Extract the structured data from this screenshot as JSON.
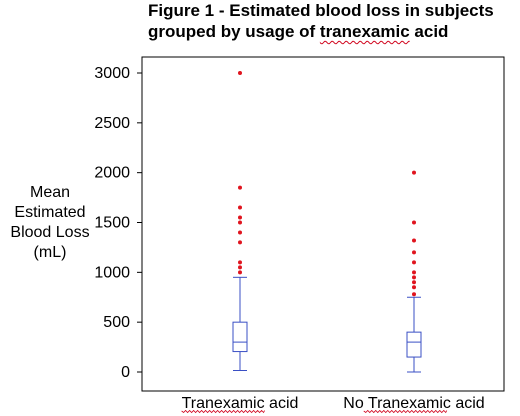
{
  "chart_data": {
    "type": "box",
    "title_line1": "Figure 1 - Estimated blood loss in subjects",
    "title_line2_prefix": "grouped by usage of ",
    "title_line2_word": "tranexamic",
    "title_line2_suffix": " acid",
    "ylabel_lines": [
      "Mean",
      "Estimated",
      "Blood Loss",
      "(mL)"
    ],
    "xlabel": "",
    "ylim": [
      0,
      3000
    ],
    "yticks": [
      0,
      500,
      1000,
      1500,
      2000,
      2500,
      3000
    ],
    "grid": false,
    "categories": [
      "Tranexamic acid",
      "No Tranexamic acid"
    ],
    "category_squiggle_word": "Tranexamic",
    "boxes": [
      {
        "category": "Tranexamic acid",
        "whisker_low": 15,
        "q1": 205,
        "median": 300,
        "q3": 500,
        "whisker_high": 950,
        "outliers": [
          1000,
          1050,
          1100,
          1300,
          1400,
          1500,
          1550,
          1650,
          1850,
          3000
        ]
      },
      {
        "category": "No Tranexamic acid",
        "whisker_low": 0,
        "q1": 150,
        "median": 300,
        "q3": 400,
        "whisker_high": 750,
        "outliers": [
          780,
          850,
          900,
          950,
          1000,
          1100,
          1200,
          1320,
          1500,
          2000
        ]
      }
    ],
    "colors": {
      "box": "#3a4fc4",
      "outlier": "#e0141e",
      "frame": "#000000"
    }
  }
}
